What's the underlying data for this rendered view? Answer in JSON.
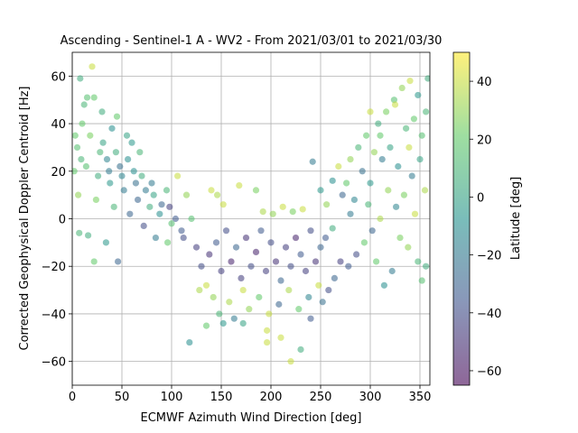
{
  "chart_data": {
    "type": "scatter",
    "title": "Ascending - Sentinel-1 A - WV2 - From 2021/03/01 to 2021/03/30",
    "xlabel": "ECMWF Azimuth Wind Direction [deg]",
    "ylabel": "Corrected Geophysical Doppler Centroid [Hz]",
    "xlim": [
      0,
      360
    ],
    "ylim": [
      -70,
      70
    ],
    "xticks": [
      "0",
      "50",
      "100",
      "150",
      "200",
      "250",
      "300",
      "350"
    ],
    "yticks": [
      "60",
      "40",
      "20",
      "0",
      "−20",
      "−40",
      "−60"
    ],
    "xtick_values": [
      0,
      50,
      100,
      150,
      200,
      250,
      300,
      350
    ],
    "ytick_values": [
      60,
      40,
      20,
      0,
      -20,
      -40,
      -60
    ],
    "grid": true,
    "colorbar": {
      "label": "Latitude [deg]",
      "range": [
        -65,
        50
      ],
      "ticks": [
        "40",
        "20",
        "0",
        "−20",
        "−40",
        "−60"
      ],
      "tick_values": [
        40,
        20,
        0,
        -20,
        -40,
        -60
      ],
      "colormap": "viridis"
    },
    "marker_alpha": 0.55,
    "points": [
      [
        20,
        64,
        40
      ],
      [
        8,
        59,
        5
      ],
      [
        15,
        51,
        15
      ],
      [
        22,
        51,
        20
      ],
      [
        12,
        48,
        10
      ],
      [
        30,
        45,
        5
      ],
      [
        45,
        43,
        20
      ],
      [
        40,
        38,
        -10
      ],
      [
        55,
        35,
        0
      ],
      [
        60,
        32,
        -5
      ],
      [
        10,
        40,
        20
      ],
      [
        5,
        30,
        15
      ],
      [
        18,
        35,
        25
      ],
      [
        28,
        28,
        10
      ],
      [
        35,
        25,
        -15
      ],
      [
        48,
        22,
        -25
      ],
      [
        62,
        20,
        -10
      ],
      [
        70,
        18,
        5
      ],
      [
        80,
        15,
        -20
      ],
      [
        95,
        12,
        10
      ],
      [
        2,
        20,
        20
      ],
      [
        14,
        22,
        15
      ],
      [
        26,
        18,
        5
      ],
      [
        38,
        15,
        -5
      ],
      [
        52,
        12,
        -20
      ],
      [
        66,
        8,
        -30
      ],
      [
        78,
        5,
        5
      ],
      [
        88,
        2,
        -10
      ],
      [
        100,
        -2,
        15
      ],
      [
        110,
        -5,
        -35
      ],
      [
        6,
        10,
        30
      ],
      [
        24,
        8,
        25
      ],
      [
        42,
        5,
        10
      ],
      [
        58,
        2,
        -30
      ],
      [
        72,
        -3,
        -40
      ],
      [
        84,
        -8,
        -20
      ],
      [
        96,
        -10,
        20
      ],
      [
        106,
        18,
        40
      ],
      [
        115,
        10,
        30
      ],
      [
        120,
        0,
        15
      ],
      [
        7,
        -6,
        10
      ],
      [
        16,
        -7,
        5
      ],
      [
        22,
        -18,
        20
      ],
      [
        34,
        -10,
        -5
      ],
      [
        46,
        -18,
        -30
      ],
      [
        3,
        35,
        20
      ],
      [
        9,
        25,
        10
      ],
      [
        31,
        32,
        0
      ],
      [
        37,
        20,
        -20
      ],
      [
        44,
        28,
        5
      ],
      [
        50,
        18,
        -15
      ],
      [
        56,
        25,
        -10
      ],
      [
        64,
        15,
        -25
      ],
      [
        68,
        28,
        10
      ],
      [
        74,
        12,
        -20
      ],
      [
        82,
        10,
        0
      ],
      [
        90,
        6,
        -30
      ],
      [
        98,
        5,
        -45
      ],
      [
        104,
        0,
        -35
      ],
      [
        112,
        -8,
        -40
      ],
      [
        125,
        -12,
        -45
      ],
      [
        130,
        -20,
        -40
      ],
      [
        138,
        -15,
        -50
      ],
      [
        145,
        -10,
        -35
      ],
      [
        150,
        -22,
        -45
      ],
      [
        155,
        -5,
        -40
      ],
      [
        160,
        -18,
        -55
      ],
      [
        165,
        -12,
        -30
      ],
      [
        170,
        -25,
        -45
      ],
      [
        175,
        -8,
        -50
      ],
      [
        180,
        -20,
        -40
      ],
      [
        185,
        -14,
        -55
      ],
      [
        190,
        -5,
        -35
      ],
      [
        195,
        -22,
        -45
      ],
      [
        200,
        -10,
        -40
      ],
      [
        205,
        -18,
        -50
      ],
      [
        210,
        -26,
        -30
      ],
      [
        215,
        -12,
        -45
      ],
      [
        220,
        -20,
        -40
      ],
      [
        225,
        -8,
        -55
      ],
      [
        230,
        -15,
        -35
      ],
      [
        235,
        -22,
        -45
      ],
      [
        240,
        -5,
        -40
      ],
      [
        245,
        -18,
        -50
      ],
      [
        250,
        -12,
        -30
      ],
      [
        128,
        -30,
        35
      ],
      [
        135,
        -28,
        40
      ],
      [
        142,
        -33,
        30
      ],
      [
        148,
        -40,
        10
      ],
      [
        158,
        -35,
        35
      ],
      [
        163,
        -42,
        -20
      ],
      [
        172,
        -30,
        40
      ],
      [
        178,
        -38,
        30
      ],
      [
        188,
        -33,
        20
      ],
      [
        198,
        -40,
        40
      ],
      [
        208,
        -36,
        -30
      ],
      [
        218,
        -30,
        35
      ],
      [
        228,
        -38,
        20
      ],
      [
        238,
        -33,
        -15
      ],
      [
        248,
        -28,
        40
      ],
      [
        118,
        -52,
        -10
      ],
      [
        135,
        -45,
        20
      ],
      [
        152,
        -44,
        -5
      ],
      [
        172,
        -44,
        0
      ],
      [
        196,
        -47,
        40
      ],
      [
        196,
        -52,
        40
      ],
      [
        210,
        -50,
        40
      ],
      [
        220,
        -60,
        40
      ],
      [
        230,
        -55,
        5
      ],
      [
        240,
        -42,
        -35
      ],
      [
        140,
        12,
        40
      ],
      [
        146,
        10,
        35
      ],
      [
        152,
        6,
        40
      ],
      [
        168,
        14,
        40
      ],
      [
        185,
        12,
        25
      ],
      [
        192,
        3,
        35
      ],
      [
        202,
        2,
        30
      ],
      [
        212,
        5,
        40
      ],
      [
        222,
        3,
        25
      ],
      [
        232,
        4,
        40
      ],
      [
        242,
        24,
        -20
      ],
      [
        250,
        12,
        -5
      ],
      [
        256,
        6,
        30
      ],
      [
        262,
        16,
        -10
      ],
      [
        268,
        22,
        40
      ],
      [
        272,
        10,
        -30
      ],
      [
        276,
        15,
        20
      ],
      [
        280,
        25,
        30
      ],
      [
        284,
        8,
        -15
      ],
      [
        288,
        30,
        10
      ],
      [
        292,
        20,
        -25
      ],
      [
        296,
        35,
        20
      ],
      [
        300,
        15,
        -5
      ],
      [
        304,
        28,
        30
      ],
      [
        308,
        40,
        5
      ],
      [
        312,
        25,
        -20
      ],
      [
        316,
        45,
        25
      ],
      [
        320,
        30,
        0
      ],
      [
        324,
        50,
        15
      ],
      [
        328,
        22,
        -10
      ],
      [
        332,
        55,
        30
      ],
      [
        336,
        38,
        10
      ],
      [
        340,
        58,
        40
      ],
      [
        344,
        42,
        20
      ],
      [
        348,
        52,
        -5
      ],
      [
        352,
        35,
        15
      ],
      [
        356,
        45,
        10
      ],
      [
        358,
        59,
        5
      ],
      [
        350,
        25,
        0
      ],
      [
        342,
        18,
        -20
      ],
      [
        334,
        10,
        25
      ],
      [
        326,
        5,
        -15
      ],
      [
        318,
        12,
        30
      ],
      [
        310,
        0,
        35
      ],
      [
        302,
        -5,
        -30
      ],
      [
        294,
        -10,
        20
      ],
      [
        286,
        -15,
        -40
      ],
      [
        278,
        -20,
        -35
      ],
      [
        270,
        -18,
        -45
      ],
      [
        264,
        -25,
        -30
      ],
      [
        258,
        -30,
        -40
      ],
      [
        252,
        -35,
        -25
      ],
      [
        348,
        -18,
        10
      ],
      [
        352,
        -26,
        15
      ],
      [
        356,
        -20,
        5
      ],
      [
        338,
        -12,
        30
      ],
      [
        330,
        -8,
        25
      ],
      [
        322,
        -22,
        -20
      ],
      [
        314,
        -28,
        -10
      ],
      [
        306,
        -18,
        20
      ],
      [
        255,
        -8,
        -35
      ],
      [
        262,
        -4,
        5
      ],
      [
        280,
        2,
        -20
      ],
      [
        298,
        6,
        10
      ],
      [
        345,
        2,
        40
      ],
      [
        355,
        12,
        35
      ],
      [
        339,
        30,
        40
      ],
      [
        325,
        48,
        40
      ],
      [
        310,
        35,
        20
      ],
      [
        300,
        45,
        40
      ]
    ]
  }
}
